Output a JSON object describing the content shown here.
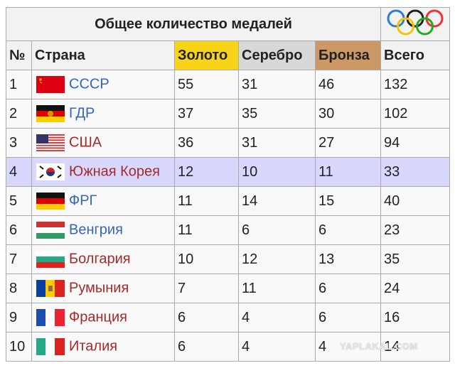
{
  "header": {
    "title": "Общее количество медалей"
  },
  "table": {
    "columns": [
      "№",
      "Страна",
      "Золото",
      "Серебро",
      "Бронза",
      "Всего"
    ],
    "rows": [
      [
        1,
        "СССР",
        55,
        31,
        46,
        132
      ],
      [
        2,
        "ГДР",
        37,
        35,
        30,
        102
      ],
      [
        3,
        "США",
        36,
        31,
        27,
        94
      ],
      [
        4,
        "Южная Корея",
        12,
        10,
        11,
        33
      ],
      [
        5,
        "ФРГ",
        11,
        14,
        15,
        40
      ],
      [
        6,
        "Венгрия",
        11,
        6,
        6,
        23
      ],
      [
        7,
        "Болгария",
        10,
        12,
        13,
        35
      ],
      [
        8,
        "Румыния",
        7,
        11,
        6,
        24
      ],
      [
        9,
        "Франция",
        6,
        4,
        6,
        16
      ],
      [
        10,
        "Италия",
        6,
        4,
        4,
        14
      ]
    ]
  },
  "watermark": "YAPLAKAL.COM"
}
